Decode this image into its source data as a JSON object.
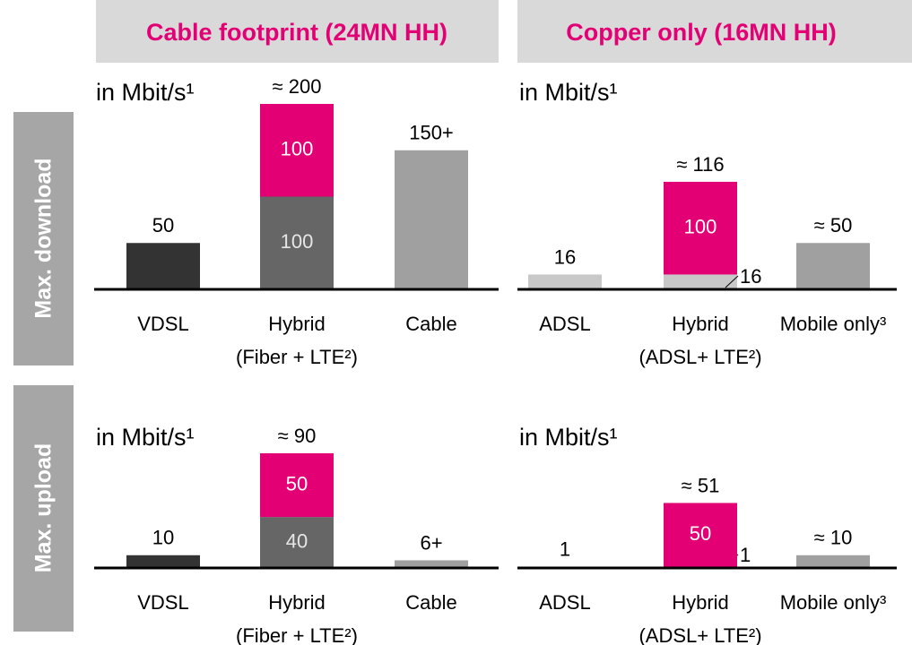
{
  "columns": [
    "Cable footprint (24MN HH)",
    "Copper only (16MN HH)"
  ],
  "rows": [
    "Max. download",
    "Max. upload"
  ],
  "chart_data": [
    {
      "type": "bar",
      "stacked": true,
      "unit_label": "in Mbit/s¹",
      "categories": [
        "VDSL",
        "Hybrid",
        "Cable"
      ],
      "category_notes": [
        null,
        "(Fiber + LTE²)",
        null
      ],
      "series": [
        {
          "colors": [
            "#333333",
            "#666666",
            "#a0a0a0"
          ],
          "values": [
            50,
            100,
            150
          ],
          "value_labels": [
            null,
            "100",
            null
          ]
        },
        {
          "color": "#e20074",
          "values": [
            null,
            100,
            null
          ],
          "value_labels": [
            null,
            "100",
            null
          ]
        }
      ],
      "totals": [
        50,
        200,
        150
      ],
      "total_labels": [
        "50",
        "≈ 200",
        "150+"
      ],
      "ylim": [
        0,
        200
      ]
    },
    {
      "type": "bar",
      "stacked": true,
      "unit_label": "in Mbit/s¹",
      "categories": [
        "ADSL",
        "Hybrid",
        "Mobile only³"
      ],
      "category_notes": [
        null,
        "(ADSL+ LTE²)",
        null
      ],
      "series": [
        {
          "colors": [
            "#c8c8c8",
            "#c8c8c8",
            "#a0a0a0"
          ],
          "values": [
            16,
            16,
            50
          ],
          "value_labels": [
            null,
            "16",
            null
          ]
        },
        {
          "color": "#e20074",
          "values": [
            null,
            100,
            null
          ],
          "value_labels": [
            null,
            "100",
            null
          ]
        }
      ],
      "totals": [
        16,
        116,
        50
      ],
      "total_labels": [
        "16",
        "≈ 116",
        "≈ 50"
      ],
      "ylim": [
        0,
        200
      ]
    },
    {
      "type": "bar",
      "stacked": true,
      "unit_label": "in Mbit/s¹",
      "categories": [
        "VDSL",
        "Hybrid",
        "Cable"
      ],
      "category_notes": [
        null,
        "(Fiber + LTE²)",
        null
      ],
      "series": [
        {
          "colors": [
            "#333333",
            "#666666",
            "#a0a0a0"
          ],
          "values": [
            10,
            40,
            6
          ],
          "value_labels": [
            null,
            "40",
            null
          ]
        },
        {
          "color": "#e20074",
          "values": [
            null,
            50,
            null
          ],
          "value_labels": [
            null,
            "50",
            null
          ]
        }
      ],
      "totals": [
        10,
        90,
        6
      ],
      "total_labels": [
        "10",
        "≈ 90",
        "6+"
      ],
      "ylim": [
        0,
        90
      ]
    },
    {
      "type": "bar",
      "stacked": true,
      "unit_label": "in Mbit/s¹",
      "categories": [
        "ADSL",
        "Hybrid",
        "Mobile only³"
      ],
      "category_notes": [
        null,
        "(ADSL+ LTE²)",
        null
      ],
      "series": [
        {
          "colors": [
            "#c8c8c8",
            "#c8c8c8",
            "#a0a0a0"
          ],
          "values": [
            1,
            1,
            10
          ],
          "value_labels": [
            null,
            "1",
            null
          ]
        },
        {
          "color": "#e20074",
          "values": [
            null,
            50,
            null
          ],
          "value_labels": [
            null,
            "50",
            null
          ]
        }
      ],
      "totals": [
        1,
        51,
        10
      ],
      "total_labels": [
        "1",
        "≈ 51",
        "≈ 10"
      ],
      "ylim": [
        0,
        90
      ]
    }
  ]
}
